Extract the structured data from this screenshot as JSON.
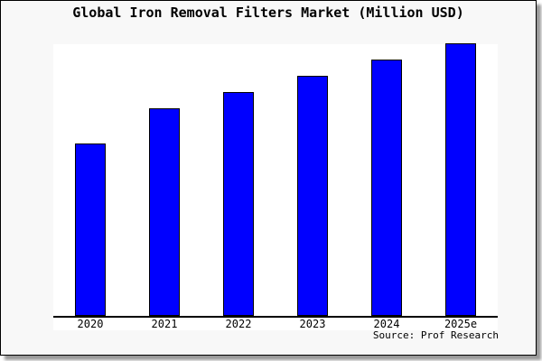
{
  "chart": {
    "title": "Global Iron Removal Filters Market (Million USD)",
    "source": "Source: Prof Research"
  },
  "chart_data": {
    "type": "bar",
    "title": "Global Iron Removal Filters Market (Million USD)",
    "categories": [
      "2020",
      "2021",
      "2022",
      "2023",
      "2024",
      "2025e"
    ],
    "values": [
      63,
      76,
      82,
      88,
      94,
      100
    ],
    "values_note": "relative index estimated from bar heights (2025e = 100); no y-axis scale or gridlines shown",
    "xlabel": "",
    "ylabel": "",
    "ylim": [
      0,
      100.2
    ],
    "grid": false,
    "legend": false,
    "source": "Source: Prof Research"
  },
  "colors": {
    "bar_fill": "#0000ff",
    "bar_border": "#000000",
    "frame_background": "#f8f8f8",
    "plot_background": "#ffffff",
    "axis": "#000000",
    "text": "#000000",
    "shadow": "#999999"
  }
}
